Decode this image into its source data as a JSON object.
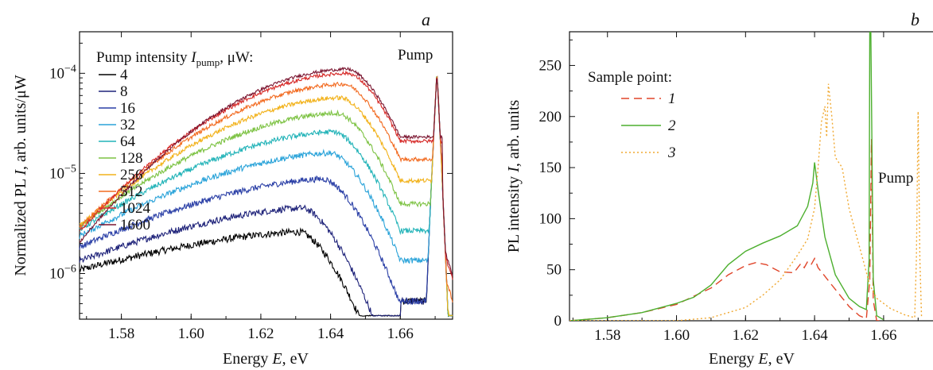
{
  "chart_data": [
    {
      "panel_label": "a",
      "type": "line",
      "xlabel": "Energy E, eV",
      "ylabel": "Normalized PL I, arb. units/μW",
      "xlim": [
        1.568,
        1.675
      ],
      "ylim": [
        3.5e-07,
        0.00026
      ],
      "yscale": "log",
      "x_ticks": [
        1.58,
        1.6,
        1.62,
        1.64,
        1.66
      ],
      "x_tick_labels": [
        "1.58",
        "1.60",
        "1.62",
        "1.64",
        "1.66"
      ],
      "y_ticks": [
        1e-06,
        1e-05,
        0.0001
      ],
      "y_tick_labels": [
        "10^-6",
        "10^-5",
        "10^-4"
      ],
      "legend_title": "Pump intensity I_pump, μW:",
      "legend_position": "top-left",
      "annotation": "Pump",
      "series": [
        {
          "name": "4",
          "color": "#000000",
          "peak_x": 1.631,
          "peak_y": 2.6e-06,
          "pump_y": 0.0001
        },
        {
          "name": "8",
          "color": "#1f237a",
          "peak_x": 1.632,
          "peak_y": 4.5e-06,
          "pump_y": 0.0001
        },
        {
          "name": "16",
          "color": "#2a3fa6",
          "peak_x": 1.638,
          "peak_y": 8.8e-06,
          "pump_y": 0.0001
        },
        {
          "name": "32",
          "color": "#2aa3d9",
          "peak_x": 1.64,
          "peak_y": 1.6e-05,
          "pump_y": 0.0001
        },
        {
          "name": "64",
          "color": "#22b3b8",
          "peak_x": 1.641,
          "peak_y": 2.6e-05,
          "pump_y": 0.0001
        },
        {
          "name": "128",
          "color": "#7cc242",
          "peak_x": 1.642,
          "peak_y": 4e-05,
          "pump_y": 0.0001
        },
        {
          "name": "256",
          "color": "#f2b21b",
          "peak_x": 1.643,
          "peak_y": 5.7e-05,
          "pump_y": 0.0001
        },
        {
          "name": "512",
          "color": "#f26b21",
          "peak_x": 1.644,
          "peak_y": 7.8e-05,
          "pump_y": 0.0001
        },
        {
          "name": "1024",
          "color": "#d62a28",
          "peak_x": 1.645,
          "peak_y": 0.0001,
          "pump_y": 0.0001
        },
        {
          "name": "1600",
          "color": "#7a1530",
          "peak_x": 1.645,
          "peak_y": 0.00011,
          "pump_y": 0.0001
        }
      ]
    },
    {
      "panel_label": "b",
      "type": "line",
      "xlabel": "Energy E, eV",
      "ylabel": "PL intensity I, arb. units",
      "xlim": [
        1.569,
        1.675
      ],
      "ylim": [
        0,
        283
      ],
      "yscale": "linear",
      "x_ticks": [
        1.58,
        1.6,
        1.62,
        1.64,
        1.66
      ],
      "x_tick_labels": [
        "1.58",
        "1.60",
        "1.62",
        "1.64",
        "1.66"
      ],
      "y_ticks": [
        0,
        50,
        100,
        150,
        200,
        250
      ],
      "y_tick_labels": [
        "0",
        "50",
        "100",
        "150",
        "200",
        "250"
      ],
      "legend_title": "Sample point:",
      "legend_position": "top-left",
      "annotation": "Pump",
      "series": [
        {
          "name": "1",
          "color": "#e0452a",
          "dash": "dashed",
          "x": [
            1.569,
            1.58,
            1.59,
            1.6,
            1.61,
            1.615,
            1.62,
            1.623,
            1.626,
            1.63,
            1.634,
            1.636,
            1.637,
            1.638,
            1.639,
            1.64,
            1.641,
            1.645,
            1.65,
            1.653,
            1.655,
            1.656,
            1.6565,
            1.657,
            1.658,
            1.66
          ],
          "y": [
            0,
            3,
            8,
            16,
            32,
            45,
            54,
            57,
            55,
            48,
            47,
            56,
            52,
            58,
            55,
            61,
            52,
            35,
            14,
            5,
            2,
            40,
            178,
            20,
            0,
            0
          ]
        },
        {
          "name": "2",
          "color": "#4caf2e",
          "dash": "solid",
          "x": [
            1.569,
            1.58,
            1.59,
            1.6,
            1.605,
            1.61,
            1.615,
            1.62,
            1.625,
            1.63,
            1.635,
            1.638,
            1.6395,
            1.64,
            1.641,
            1.643,
            1.646,
            1.65,
            1.653,
            1.655,
            1.6558,
            1.656,
            1.6563,
            1.657,
            1.658,
            1.66
          ],
          "y": [
            0,
            3,
            8,
            17,
            23,
            35,
            55,
            68,
            76,
            83,
            93,
            112,
            135,
            155,
            128,
            82,
            45,
            22,
            14,
            11,
            60,
            285,
            285,
            40,
            5,
            1
          ]
        },
        {
          "name": "3",
          "color": "#f0a830",
          "dash": "dotted",
          "x": [
            1.569,
            1.6,
            1.61,
            1.62,
            1.625,
            1.63,
            1.635,
            1.638,
            1.64,
            1.641,
            1.642,
            1.643,
            1.6435,
            1.644,
            1.645,
            1.646,
            1.648,
            1.65,
            1.654,
            1.656,
            1.658,
            1.662,
            1.666,
            1.669,
            1.6695,
            1.67,
            1.6705,
            1.671
          ],
          "y": [
            0,
            0,
            3,
            13,
            25,
            40,
            64,
            80,
            110,
            150,
            195,
            210,
            180,
            232,
            200,
            160,
            150,
            110,
            60,
            35,
            22,
            12,
            6,
            3,
            60,
            205,
            60,
            3
          ]
        }
      ]
    }
  ]
}
